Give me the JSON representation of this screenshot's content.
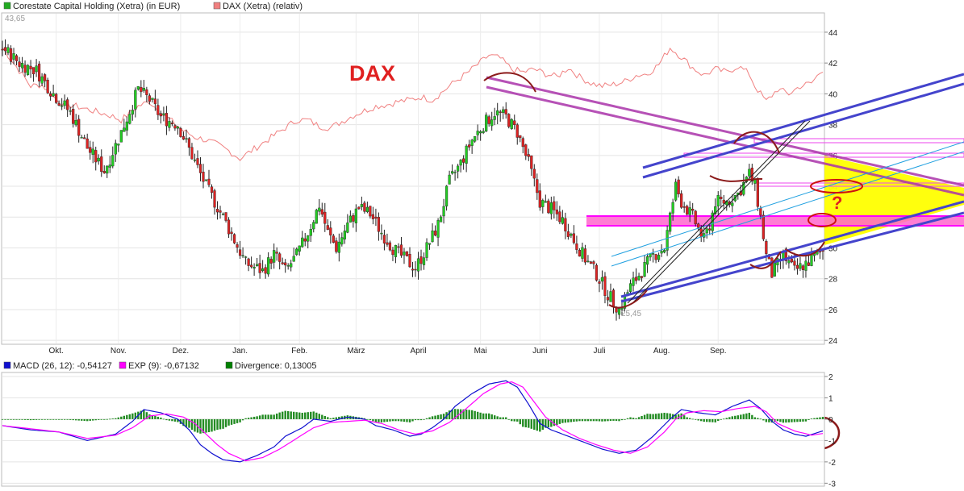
{
  "legend": {
    "main": [
      {
        "label": "Corestate Capital Holding (Xetra) (in EUR)",
        "color": "#22aa22"
      },
      {
        "label": "DAX (Xetra) (relativ)",
        "color": "#f08080"
      }
    ],
    "macd": [
      {
        "label": "MACD (26, 12): -0,54127",
        "color": "#1010d0"
      },
      {
        "label": "EXP (9): -0,67132",
        "color": "#ff00ff"
      },
      {
        "label": "Divergence: 0,13005",
        "color": "#008000"
      }
    ]
  },
  "chart_data": [
    {
      "type": "candlestick",
      "title": "",
      "months": [
        "Okt.",
        "Nov.",
        "Dez.",
        "Jan.",
        "Feb.",
        "März",
        "April",
        "Mai",
        "Juni",
        "Juli",
        "Aug.",
        "Sep."
      ],
      "y_ticks": [
        24,
        26,
        28,
        30,
        32,
        34,
        36,
        38,
        40,
        42,
        44
      ],
      "ylim": [
        23.8,
        45.2
      ],
      "high_label": "43,65",
      "low_label": "25,45",
      "annotation": "DAX",
      "annotation_question": "?",
      "anchors": [
        [
          0,
          43
        ],
        [
          6,
          42
        ],
        [
          12,
          41.5
        ],
        [
          18,
          40
        ],
        [
          24,
          38.8
        ],
        [
          30,
          36.5
        ],
        [
          36,
          35
        ],
        [
          42,
          37.5
        ],
        [
          48,
          40.3
        ],
        [
          52,
          39.6
        ],
        [
          56,
          38.5
        ],
        [
          62,
          38
        ],
        [
          67,
          36
        ],
        [
          72,
          34
        ],
        [
          78,
          32
        ],
        [
          82,
          30.5
        ],
        [
          86,
          29
        ],
        [
          92,
          28.5
        ],
        [
          96,
          29.6
        ],
        [
          100,
          28.5
        ],
        [
          104,
          29.5
        ],
        [
          108,
          31
        ],
        [
          112,
          32.8
        ],
        [
          115,
          31
        ],
        [
          118,
          30
        ],
        [
          122,
          31.5
        ],
        [
          126,
          32.6
        ],
        [
          130,
          32.2
        ],
        [
          134,
          31
        ],
        [
          138,
          30
        ],
        [
          142,
          29.3
        ],
        [
          146,
          28.7
        ],
        [
          150,
          30
        ],
        [
          154,
          31.5
        ],
        [
          158,
          34.3
        ],
        [
          162,
          35.5
        ],
        [
          166,
          37
        ],
        [
          170,
          38
        ],
        [
          174,
          38.8
        ],
        [
          178,
          38.5
        ],
        [
          182,
          37.5
        ],
        [
          186,
          35.5
        ],
        [
          190,
          33
        ],
        [
          194,
          32.5
        ],
        [
          198,
          31.8
        ],
        [
          202,
          30.5
        ],
        [
          206,
          29.3
        ],
        [
          210,
          28.3
        ],
        [
          214,
          27
        ],
        [
          218,
          26
        ],
        [
          222,
          27.5
        ],
        [
          226,
          28.5
        ],
        [
          230,
          29.5
        ],
        [
          234,
          30
        ],
        [
          236,
          32
        ],
        [
          238,
          34
        ],
        [
          240,
          33
        ],
        [
          244,
          32
        ],
        [
          248,
          30.5
        ],
        [
          250,
          31.5
        ],
        [
          252,
          33
        ],
        [
          256,
          33
        ],
        [
          260,
          33.5
        ],
        [
          264,
          34.8
        ],
        [
          266,
          34
        ],
        [
          268,
          32
        ],
        [
          270,
          29.5
        ],
        [
          272,
          28.3
        ],
        [
          276,
          29.5
        ],
        [
          280,
          28.5
        ],
        [
          284,
          29
        ],
        [
          290,
          29.8
        ]
      ],
      "dax_relative": [
        [
          0,
          43
        ],
        [
          6,
          41.5
        ],
        [
          10,
          40.5
        ],
        [
          14,
          40.6
        ],
        [
          18,
          39.8
        ],
        [
          22,
          39.3
        ],
        [
          26,
          39.2
        ],
        [
          30,
          39
        ],
        [
          34,
          38.8
        ],
        [
          38,
          38.6
        ],
        [
          42,
          38.3
        ],
        [
          48,
          39.2
        ],
        [
          52,
          39.5
        ],
        [
          56,
          38.8
        ],
        [
          60,
          38.2
        ],
        [
          64,
          37.6
        ],
        [
          68,
          37.2
        ],
        [
          72,
          37
        ],
        [
          76,
          36.7
        ],
        [
          80,
          36.3
        ],
        [
          84,
          35.8
        ],
        [
          88,
          36.3
        ],
        [
          92,
          36.8
        ],
        [
          96,
          37.3
        ],
        [
          100,
          37.8
        ],
        [
          104,
          38.3
        ],
        [
          108,
          38.3
        ],
        [
          112,
          37.9
        ],
        [
          116,
          37.8
        ],
        [
          120,
          38.2
        ],
        [
          124,
          38.6
        ],
        [
          128,
          38.9
        ],
        [
          132,
          39.2
        ],
        [
          136,
          39.3
        ],
        [
          140,
          39.5
        ],
        [
          144,
          39.6
        ],
        [
          148,
          39.8
        ],
        [
          152,
          39.6
        ],
        [
          156,
          40.2
        ],
        [
          160,
          40.8
        ],
        [
          164,
          41.3
        ],
        [
          168,
          41.9
        ],
        [
          172,
          42.5
        ],
        [
          176,
          42.3
        ],
        [
          180,
          41.6
        ],
        [
          184,
          41.4
        ],
        [
          188,
          41.6
        ],
        [
          192,
          41.3
        ],
        [
          196,
          41.1
        ],
        [
          200,
          41.7
        ],
        [
          204,
          41.1
        ],
        [
          208,
          40.7
        ],
        [
          212,
          40.5
        ],
        [
          216,
          40.6
        ],
        [
          220,
          40.8
        ],
        [
          224,
          41.2
        ],
        [
          228,
          41.3
        ],
        [
          232,
          41.9
        ],
        [
          236,
          43
        ],
        [
          240,
          42.4
        ],
        [
          244,
          41.7
        ],
        [
          248,
          41.2
        ],
        [
          252,
          41.6
        ],
        [
          256,
          41.4
        ],
        [
          260,
          41.8
        ],
        [
          264,
          41.3
        ],
        [
          266,
          40.5
        ],
        [
          270,
          39.5
        ],
        [
          274,
          40.3
        ],
        [
          278,
          40
        ],
        [
          282,
          40.5
        ],
        [
          286,
          40.7
        ],
        [
          290,
          41.6
        ]
      ]
    },
    {
      "type": "line",
      "y_ticks": [
        2,
        1,
        0,
        -1,
        -2,
        -3
      ],
      "ylim": [
        -3.1,
        2.15
      ],
      "series": [
        {
          "name": "MACD (26, 12)",
          "color": "#1010d0",
          "values": [
            [
              0,
              -0.3
            ],
            [
              10,
              -0.5
            ],
            [
              20,
              -0.6
            ],
            [
              30,
              -1
            ],
            [
              40,
              -0.7
            ],
            [
              46,
              -0.1
            ],
            [
              50,
              0.45
            ],
            [
              56,
              0.3
            ],
            [
              62,
              0
            ],
            [
              66,
              -0.5
            ],
            [
              70,
              -1.2
            ],
            [
              74,
              -1.6
            ],
            [
              78,
              -1.9
            ],
            [
              84,
              -2
            ],
            [
              90,
              -1.7
            ],
            [
              96,
              -1.3
            ],
            [
              100,
              -0.8
            ],
            [
              106,
              -0.4
            ],
            [
              110,
              0
            ],
            [
              116,
              -0.1
            ],
            [
              122,
              0.1
            ],
            [
              128,
              0
            ],
            [
              132,
              -0.3
            ],
            [
              138,
              -0.5
            ],
            [
              144,
              -0.8
            ],
            [
              148,
              -0.7
            ],
            [
              152,
              -0.4
            ],
            [
              156,
              0
            ],
            [
              160,
              0.6
            ],
            [
              166,
              1.2
            ],
            [
              172,
              1.65
            ],
            [
              178,
              1.8
            ],
            [
              182,
              1.5
            ],
            [
              186,
              0.7
            ],
            [
              190,
              -0.2
            ],
            [
              194,
              -0.5
            ],
            [
              200,
              -0.8
            ],
            [
              206,
              -1.1
            ],
            [
              212,
              -1.4
            ],
            [
              218,
              -1.6
            ],
            [
              224,
              -1.45
            ],
            [
              230,
              -0.8
            ],
            [
              236,
              0
            ],
            [
              240,
              0.45
            ],
            [
              246,
              0.3
            ],
            [
              252,
              0.2
            ],
            [
              258,
              0.6
            ],
            [
              264,
              0.9
            ],
            [
              268,
              0.5
            ],
            [
              272,
              -0.1
            ],
            [
              276,
              -0.5
            ],
            [
              280,
              -0.7
            ],
            [
              284,
              -0.8
            ],
            [
              290,
              -0.55
            ]
          ]
        },
        {
          "name": "EXP (9)",
          "color": "#ff00ff",
          "values": [
            [
              0,
              -0.3
            ],
            [
              10,
              -0.45
            ],
            [
              20,
              -0.6
            ],
            [
              30,
              -0.9
            ],
            [
              40,
              -0.75
            ],
            [
              46,
              -0.4
            ],
            [
              52,
              0.15
            ],
            [
              58,
              0.25
            ],
            [
              64,
              0.1
            ],
            [
              68,
              -0.2
            ],
            [
              72,
              -0.7
            ],
            [
              76,
              -1.2
            ],
            [
              80,
              -1.6
            ],
            [
              86,
              -1.95
            ],
            [
              92,
              -1.8
            ],
            [
              98,
              -1.4
            ],
            [
              104,
              -0.9
            ],
            [
              110,
              -0.4
            ],
            [
              116,
              -0.15
            ],
            [
              122,
              -0.1
            ],
            [
              128,
              -0.05
            ],
            [
              134,
              -0.2
            ],
            [
              140,
              -0.5
            ],
            [
              146,
              -0.7
            ],
            [
              152,
              -0.55
            ],
            [
              158,
              -0.15
            ],
            [
              164,
              0.5
            ],
            [
              170,
              1.2
            ],
            [
              176,
              1.65
            ],
            [
              180,
              1.75
            ],
            [
              184,
              1.5
            ],
            [
              188,
              0.8
            ],
            [
              192,
              0.1
            ],
            [
              198,
              -0.5
            ],
            [
              204,
              -0.9
            ],
            [
              210,
              -1.2
            ],
            [
              216,
              -1.45
            ],
            [
              222,
              -1.6
            ],
            [
              228,
              -1.3
            ],
            [
              234,
              -0.6
            ],
            [
              238,
              0
            ],
            [
              242,
              0.3
            ],
            [
              248,
              0.4
            ],
            [
              254,
              0.35
            ],
            [
              260,
              0.5
            ],
            [
              266,
              0.6
            ],
            [
              270,
              0.35
            ],
            [
              274,
              -0.2
            ],
            [
              280,
              -0.55
            ],
            [
              286,
              -0.75
            ],
            [
              290,
              -0.67
            ]
          ]
        }
      ]
    }
  ]
}
